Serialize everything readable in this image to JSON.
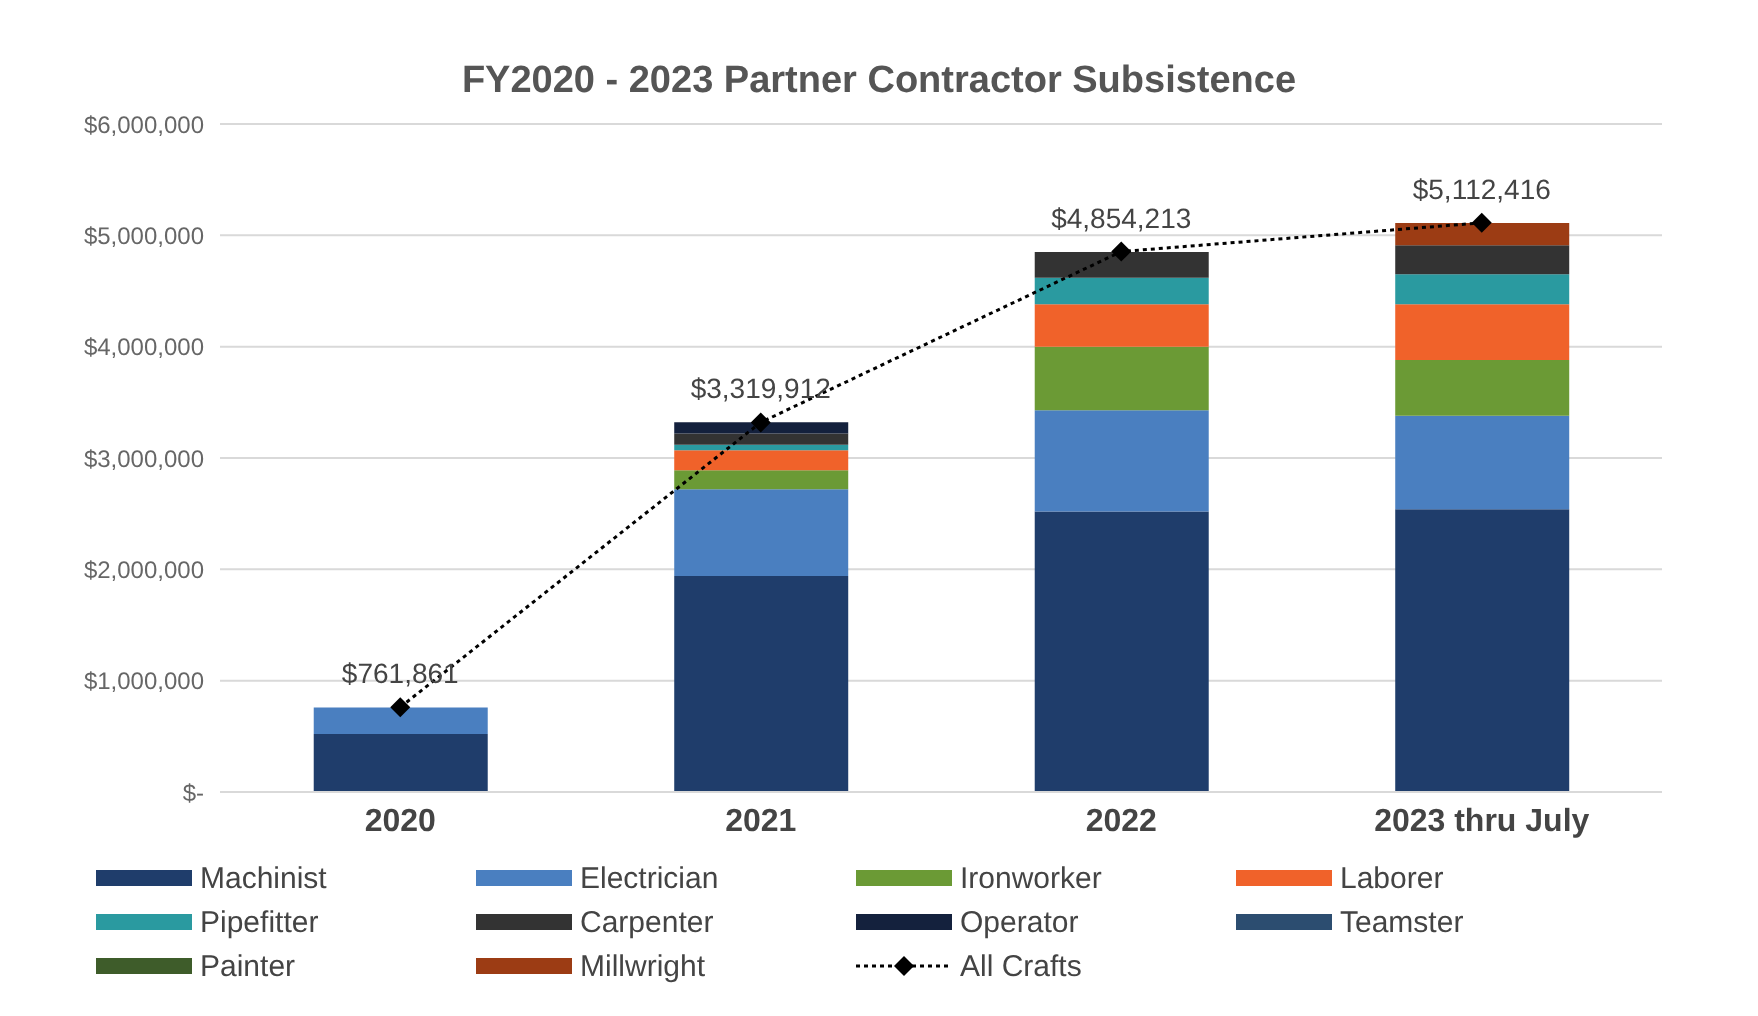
{
  "chart_data": {
    "type": "bar",
    "stacked": true,
    "title": "FY2020 - 2023 Partner Contractor Subsistence",
    "categories": [
      "2020",
      "2021",
      "2022",
      "2023 thru July"
    ],
    "ylim": [
      0,
      6000000
    ],
    "yticks": [
      {
        "value": 0,
        "label": "$-"
      },
      {
        "value": 1000000,
        "label": "$1,000,000"
      },
      {
        "value": 2000000,
        "label": "$2,000,000"
      },
      {
        "value": 3000000,
        "label": "$3,000,000"
      },
      {
        "value": 4000000,
        "label": "$4,000,000"
      },
      {
        "value": 5000000,
        "label": "$5,000,000"
      },
      {
        "value": 6000000,
        "label": "$6,000,000"
      }
    ],
    "grid": "y",
    "legend": "bottom",
    "series": [
      {
        "name": "Machinist",
        "color": "#1f3d6b",
        "values": [
          520000,
          1940000,
          2520000,
          2540000
        ]
      },
      {
        "name": "Electrician",
        "color": "#4a7fc0",
        "values": [
          240000,
          780000,
          910000,
          840000
        ]
      },
      {
        "name": "Ironworker",
        "color": "#6b9a35",
        "values": [
          null,
          170000,
          570000,
          500000
        ]
      },
      {
        "name": "Laborer",
        "color": "#f0622a",
        "values": [
          null,
          180000,
          380000,
          500000
        ]
      },
      {
        "name": "Pipefitter",
        "color": "#2a9aa0",
        "values": [
          null,
          50000,
          240000,
          270000
        ]
      },
      {
        "name": "Carpenter",
        "color": "#333333",
        "values": [
          null,
          100000,
          230000,
          260000
        ]
      },
      {
        "name": "Operator",
        "color": "#14213d",
        "values": [
          null,
          100000,
          null,
          null
        ]
      },
      {
        "name": "Teamster",
        "color": "#2c4d70",
        "values": [
          null,
          null,
          null,
          null
        ]
      },
      {
        "name": "Painter",
        "color": "#3e5c2a",
        "values": [
          null,
          null,
          null,
          null
        ]
      },
      {
        "name": "Millwright",
        "color": "#9c3c14",
        "values": [
          null,
          null,
          null,
          200000
        ]
      },
      {
        "name": "All Crafts",
        "type": "line",
        "color": "#000000",
        "marker": "diamond",
        "line_style": "dotted",
        "values": [
          761861,
          3319912,
          4854213,
          5112416
        ],
        "value_labels": [
          "$761,861",
          "$3,319,912",
          "$4,854,213",
          "$5,112,416"
        ]
      }
    ]
  }
}
